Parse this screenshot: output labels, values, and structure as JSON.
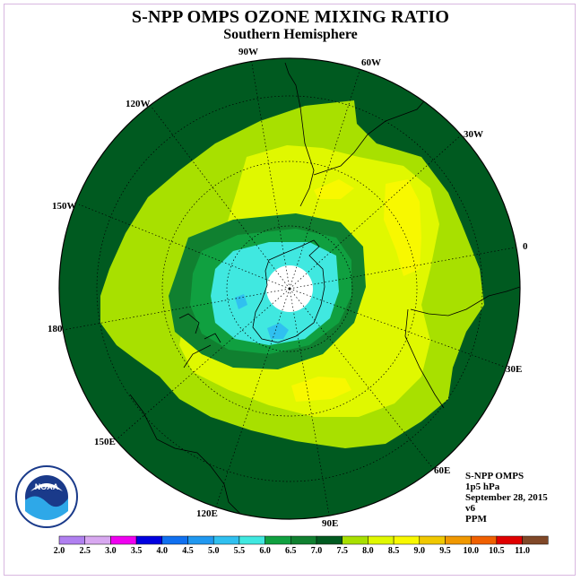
{
  "title": "S-NPP OMPS OZONE MIXING RATIO",
  "subtitle": "Southern Hemisphere",
  "logo_text": "NOAA",
  "lon_labels": {
    "w90": "90W",
    "w60": "60W",
    "w30": "30W",
    "e0": "0",
    "e30": "30E",
    "e60": "60E",
    "e90": "90E",
    "e120": "120E",
    "e150": "150E",
    "e180": "180",
    "w150": "150W",
    "w120": "120W"
  },
  "info": {
    "instrument": "S-NPP OMPS",
    "level": "1p5 hPa",
    "date": "September 28, 2015",
    "version": "v6",
    "units": "PPM"
  },
  "colorbar": {
    "labels": [
      "2.0",
      "2.5",
      "3.0",
      "3.5",
      "4.0",
      "4.5",
      "5.0",
      "5.5",
      "6.0",
      "6.5",
      "7.0",
      "7.5",
      "8.0",
      "8.5",
      "9.0",
      "9.5",
      "10.0",
      "10.5",
      "11.0"
    ],
    "colors": [
      "#b080f0",
      "#d8a8f0",
      "#f000f0",
      "#0000e0",
      "#1070f0",
      "#2098f0",
      "#30c0f0",
      "#40e8e0",
      "#10a040",
      "#108030",
      "#005a20",
      "#a8e000",
      "#e0f800",
      "#f8f800",
      "#f0c800",
      "#f09800",
      "#f06000",
      "#e00000",
      "#804828"
    ]
  },
  "chart_data": {
    "type": "heatmap",
    "projection": "south polar stereographic",
    "variable": "ozone mixing ratio",
    "units": "PPM",
    "pressure_level": "1p5 hPa",
    "date": "September 28, 2015",
    "color_levels": [
      2.0,
      2.5,
      3.0,
      3.5,
      4.0,
      4.5,
      5.0,
      5.5,
      6.0,
      6.5,
      7.0,
      7.5,
      8.0,
      8.5,
      9.0,
      9.5,
      10.0,
      10.5,
      11.0
    ],
    "regions": [
      {
        "area": "south pole (no data)",
        "range": "no data"
      },
      {
        "area": "polar vortex core",
        "range": [
          5.5,
          6.0
        ]
      },
      {
        "area": "vortex minimum near 90E",
        "range": [
          5.0,
          5.5
        ]
      },
      {
        "area": "vortex edge",
        "range": [
          6.0,
          7.0
        ]
      },
      {
        "area": "mid latitudes",
        "range": [
          7.5,
          8.5
        ]
      },
      {
        "area": "outer ring / tropics",
        "range": [
          7.0,
          7.5
        ]
      }
    ]
  }
}
